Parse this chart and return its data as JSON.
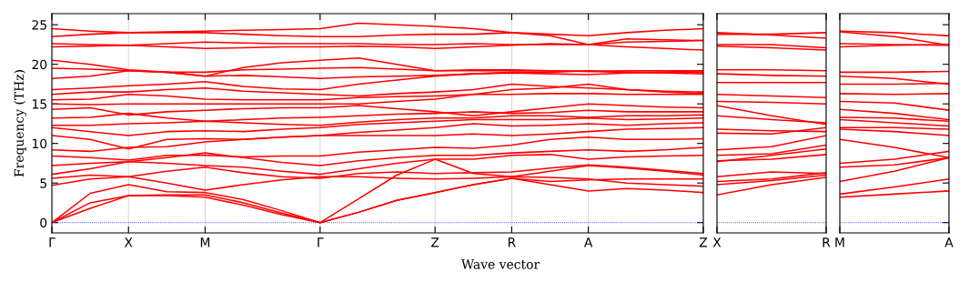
{
  "chart_data": [
    {
      "type": "line",
      "ylabel": "Frequency (THz)",
      "xlabel": "Wave vector",
      "grid": "x",
      "line_style": "solid",
      "marker": "none",
      "categories": [
        "Γ",
        null,
        "X",
        null,
        "M",
        null,
        null,
        "Γ",
        null,
        null,
        "Z",
        null,
        "R",
        null,
        "A",
        null,
        null,
        "Z"
      ],
      "ylim": [
        -1.3,
        26.4
      ],
      "yticks": [
        0,
        5,
        10,
        15,
        20,
        25
      ],
      "ref_lines": [
        {
          "axis": "y",
          "value": 0,
          "color": "#0000ff",
          "line_style": "dotted"
        }
      ],
      "series": [
        {
          "color": "#ff0000",
          "values": [
            0,
            1.8,
            3.4,
            3.4,
            3.2,
            2.2,
            1.0,
            0,
            1.3,
            2.8,
            3.8,
            4.8,
            5.6,
            4.8,
            4,
            4.3,
            4.1,
            3.8
          ]
        },
        {
          "color": "#ff0000",
          "values": [
            0,
            2.5,
            3.4,
            3.5,
            3.5,
            2.5,
            1.2,
            0,
            1.3,
            2.8,
            3.8,
            4.8,
            5.6,
            5.2,
            5.4,
            5.5,
            5.5,
            5.5
          ]
        },
        {
          "color": "#ff0000",
          "values": [
            0,
            3.7,
            4.8,
            3.9,
            3.8,
            2.9,
            1.5,
            0,
            3,
            6,
            8,
            6.2,
            5.8,
            6.5,
            7.2,
            6.9,
            6.5,
            6
          ]
        },
        {
          "color": "#ff0000",
          "values": [
            4.7,
            5.5,
            5.8,
            5,
            4.1,
            4.8,
            5.4,
            5.8,
            5.8,
            5.6,
            5.5,
            5.6,
            5.8,
            5.7,
            5.5,
            5,
            4.8,
            4.6
          ]
        },
        {
          "color": "#ff0000",
          "values": [
            5.6,
            6,
            5.8,
            6.5,
            7,
            6.3,
            5.8,
            5.6,
            6.2,
            6.4,
            6.2,
            6.3,
            6.4,
            6.9,
            7.3,
            7,
            6.6,
            6.2
          ]
        },
        {
          "color": "#ff0000",
          "values": [
            6.1,
            6.8,
            7.7,
            7.5,
            7.2,
            7,
            6.5,
            6.1,
            6.8,
            7.5,
            8,
            8,
            8.5,
            8.6,
            8,
            8.3,
            8.4,
            8.5
          ]
        },
        {
          "color": "#ff0000",
          "values": [
            7.2,
            7.5,
            7.7,
            8.2,
            8.8,
            8.2,
            7.6,
            7.2,
            7.8,
            8.2,
            8.5,
            8.5,
            8.8,
            9,
            9.2,
            9,
            9.2,
            9.5
          ]
        },
        {
          "color": "#ff0000",
          "values": [
            8.4,
            8.2,
            7.9,
            8.5,
            8.5,
            8.3,
            8.4,
            8.4,
            8.9,
            9.2,
            9.5,
            9.4,
            9.8,
            10.5,
            10.8,
            10.5,
            10.5,
            10.6
          ]
        },
        {
          "color": "#ff0000",
          "values": [
            9.2,
            9,
            9.5,
            9.6,
            10.2,
            10.5,
            10.8,
            11,
            11,
            11,
            11,
            11.2,
            11,
            11.2,
            11.5,
            11.8,
            11.9,
            12
          ]
        },
        {
          "color": "#ff0000",
          "values": [
            11,
            10.5,
            9.3,
            10.5,
            10.6,
            10.5,
            10.8,
            11,
            11.4,
            11.7,
            12,
            12.5,
            12.2,
            12.3,
            12.5,
            12.3,
            12.5,
            12.6
          ]
        },
        {
          "color": "#ff0000",
          "values": [
            12,
            11.5,
            11,
            11.5,
            11.6,
            11.5,
            11.8,
            12,
            12.4,
            12.6,
            12.8,
            13,
            13,
            13,
            13.2,
            13,
            13.1,
            13.2
          ]
        },
        {
          "color": "#ff0000",
          "values": [
            12.3,
            12.3,
            12.5,
            12.6,
            12.8,
            12.6,
            12.4,
            12.3,
            12.7,
            13,
            13.2,
            13.2,
            13.5,
            13.5,
            13.3,
            13.5,
            13.5,
            13.6
          ]
        },
        {
          "color": "#ff0000",
          "values": [
            13.2,
            13.3,
            13.8,
            13.2,
            12.8,
            13,
            13.2,
            13.3,
            13.5,
            13.7,
            13.8,
            14,
            13.8,
            13.9,
            14.2,
            14,
            14,
            14
          ]
        },
        {
          "color": "#ff0000",
          "values": [
            14.3,
            14.5,
            13.6,
            14,
            14.2,
            14.4,
            14.5,
            14.5,
            14.8,
            14.4,
            14,
            13.5,
            14,
            14.5,
            15,
            14.8,
            14.6,
            14.5
          ]
        },
        {
          "color": "#ff0000",
          "values": [
            15,
            14.9,
            15,
            15,
            15,
            15,
            15,
            15,
            15,
            15.3,
            15.6,
            16.2,
            16.8,
            17,
            17.5,
            16.8,
            16.5,
            16.3
          ]
        },
        {
          "color": "#ff0000",
          "values": [
            15.5,
            15.6,
            16.2,
            16,
            15.6,
            15.5,
            15.5,
            15.5,
            15.8,
            15.9,
            16,
            16.2,
            16.2,
            16.3,
            16.3,
            16.2,
            16.2,
            16.2
          ]
        },
        {
          "color": "#ff0000",
          "values": [
            16.2,
            16.5,
            16.5,
            16.8,
            17,
            16.6,
            16.4,
            16.2,
            16,
            16.3,
            16.5,
            16.8,
            17.5,
            17.2,
            17,
            16.8,
            16.6,
            16.5
          ]
        },
        {
          "color": "#ff0000",
          "values": [
            16.8,
            17,
            17.3,
            17.5,
            17.8,
            17.2,
            16.9,
            16.8,
            17.5,
            18,
            18.5,
            18.8,
            19,
            19,
            19.2,
            19,
            18.9,
            18.8
          ]
        },
        {
          "color": "#ff0000",
          "values": [
            18.2,
            18.5,
            19.2,
            19,
            18.5,
            18.6,
            18.4,
            18.2,
            18.4,
            18.5,
            18.6,
            18.8,
            18.9,
            18.8,
            18.7,
            18.9,
            19,
            19.2
          ]
        },
        {
          "color": "#ff0000",
          "values": [
            19.5,
            19.4,
            19.2,
            19,
            19,
            19.3,
            19.4,
            19.5,
            19.6,
            19.4,
            19.2,
            19.2,
            19.2,
            19.2,
            19.1,
            19.2,
            19.2,
            19.2
          ]
        },
        {
          "color": "#ff0000",
          "values": [
            20.5,
            20,
            19.3,
            19,
            18.5,
            19.6,
            20.2,
            20.5,
            20.8,
            20,
            19.2,
            19.3,
            19.3,
            19.2,
            19.1,
            19,
            19,
            19
          ]
        },
        {
          "color": "#ff0000",
          "values": [
            22.2,
            22.3,
            22.4,
            22.2,
            22,
            22.1,
            22.2,
            22.2,
            22.3,
            22.2,
            22,
            22.2,
            22.4,
            22.6,
            22.5,
            22.2,
            22,
            21.8
          ]
        },
        {
          "color": "#ff0000",
          "values": [
            22.6,
            22.5,
            22.4,
            22.6,
            22.8,
            22.7,
            22.6,
            22.6,
            22.6,
            22.5,
            22.5,
            22.6,
            22.5,
            22.5,
            22.5,
            22.8,
            22.9,
            23
          ]
        },
        {
          "color": "#ff0000",
          "values": [
            23.5,
            23.8,
            24,
            24,
            24,
            23.8,
            23.6,
            23.5,
            23.5,
            23.7,
            23.8,
            23.8,
            24,
            23.6,
            22.5,
            23.2,
            23.1,
            23
          ]
        },
        {
          "color": "#ff0000",
          "values": [
            24.5,
            24.2,
            24,
            24.1,
            24.2,
            24.3,
            24.4,
            24.5,
            25.2,
            25,
            24.8,
            24.5,
            24,
            23.8,
            23.6,
            24,
            24.3,
            24.5
          ]
        }
      ]
    },
    {
      "type": "line",
      "grid": "x",
      "line_style": "solid",
      "marker": "none",
      "tick_labels": "x",
      "categories": [
        "X",
        null,
        "R"
      ],
      "ylim": [
        -1.3,
        26.4
      ],
      "yticks": [
        0,
        5,
        10,
        15,
        20,
        25
      ],
      "ref_lines": [
        {
          "axis": "y",
          "value": 0,
          "color": "#0000ff",
          "line_style": "dotted"
        }
      ],
      "series": [
        {
          "color": "#ff0000",
          "values": [
            3.5,
            4.8,
            5.7
          ]
        },
        {
          "color": "#ff0000",
          "values": [
            4.8,
            5.3,
            6
          ]
        },
        {
          "color": "#ff0000",
          "values": [
            5.2,
            5.5,
            6.3
          ]
        },
        {
          "color": "#ff0000",
          "values": [
            5.8,
            6.4,
            6.2
          ]
        },
        {
          "color": "#ff0000",
          "values": [
            7.8,
            8,
            8.6
          ]
        },
        {
          "color": "#ff0000",
          "values": [
            7.7,
            8.5,
            9.3
          ]
        },
        {
          "color": "#ff0000",
          "values": [
            8.5,
            8.7,
            9.8
          ]
        },
        {
          "color": "#ff0000",
          "values": [
            9.2,
            9.6,
            11
          ]
        },
        {
          "color": "#ff0000",
          "values": [
            11.3,
            11.2,
            12
          ]
        },
        {
          "color": "#ff0000",
          "values": [
            11.8,
            11.6,
            11.5
          ]
        },
        {
          "color": "#ff0000",
          "values": [
            13.5,
            13,
            12.6
          ]
        },
        {
          "color": "#ff0000",
          "values": [
            14.8,
            13.5,
            12.4
          ]
        },
        {
          "color": "#ff0000",
          "values": [
            15.3,
            15.2,
            15
          ]
        },
        {
          "color": "#ff0000",
          "values": [
            16.2,
            16,
            15.8
          ]
        },
        {
          "color": "#ff0000",
          "values": [
            17.7,
            17.7,
            17.7
          ]
        },
        {
          "color": "#ff0000",
          "values": [
            18.8,
            18.6,
            18.5
          ]
        },
        {
          "color": "#ff0000",
          "values": [
            19.3,
            19.3,
            19.2
          ]
        },
        {
          "color": "#ff0000",
          "values": [
            22.3,
            22.1,
            21.8
          ]
        },
        {
          "color": "#ff0000",
          "values": [
            22.5,
            22.5,
            22.1
          ]
        },
        {
          "color": "#ff0000",
          "values": [
            23.8,
            23.8,
            24
          ]
        },
        {
          "color": "#ff0000",
          "values": [
            24,
            23.7,
            23.3
          ]
        }
      ]
    },
    {
      "type": "line",
      "grid": "x",
      "line_style": "solid",
      "marker": "none",
      "tick_labels": "x",
      "categories": [
        "M",
        null,
        "A"
      ],
      "ylim": [
        -1.3,
        26.4
      ],
      "yticks": [
        0,
        5,
        10,
        15,
        20,
        25
      ],
      "ref_lines": [
        {
          "axis": "y",
          "value": 0,
          "color": "#0000ff",
          "line_style": "dotted"
        }
      ],
      "series": [
        {
          "color": "#ff0000",
          "values": [
            3.2,
            3.6,
            4
          ]
        },
        {
          "color": "#ff0000",
          "values": [
            3.6,
            4.5,
            5.5
          ]
        },
        {
          "color": "#ff0000",
          "values": [
            5.2,
            6.5,
            8.2
          ]
        },
        {
          "color": "#ff0000",
          "values": [
            7,
            7.3,
            8.2
          ]
        },
        {
          "color": "#ff0000",
          "values": [
            7.5,
            8,
            9
          ]
        },
        {
          "color": "#ff0000",
          "values": [
            10.5,
            9.5,
            8.2
          ]
        },
        {
          "color": "#ff0000",
          "values": [
            11.8,
            11.5,
            11
          ]
        },
        {
          "color": "#ff0000",
          "values": [
            12,
            12,
            11.8
          ]
        },
        {
          "color": "#ff0000",
          "values": [
            13,
            12.6,
            12.2
          ]
        },
        {
          "color": "#ff0000",
          "values": [
            13.3,
            13.2,
            12.8
          ]
        },
        {
          "color": "#ff0000",
          "values": [
            14.3,
            13.8,
            13
          ]
        },
        {
          "color": "#ff0000",
          "values": [
            15.3,
            15.1,
            14.2
          ]
        },
        {
          "color": "#ff0000",
          "values": [
            16.3,
            16.2,
            16.3
          ]
        },
        {
          "color": "#ff0000",
          "values": [
            17.5,
            17.5,
            17.6
          ]
        },
        {
          "color": "#ff0000",
          "values": [
            18.5,
            18.2,
            17.5
          ]
        },
        {
          "color": "#ff0000",
          "values": [
            19,
            19,
            19.1
          ]
        },
        {
          "color": "#ff0000",
          "values": [
            22.2,
            22.4,
            22.5
          ]
        },
        {
          "color": "#ff0000",
          "values": [
            22.6,
            22.5,
            22.4
          ]
        },
        {
          "color": "#ff0000",
          "values": [
            24.1,
            23.5,
            22.4
          ]
        },
        {
          "color": "#ff0000",
          "values": [
            24.2,
            24,
            23.6
          ]
        }
      ]
    }
  ]
}
